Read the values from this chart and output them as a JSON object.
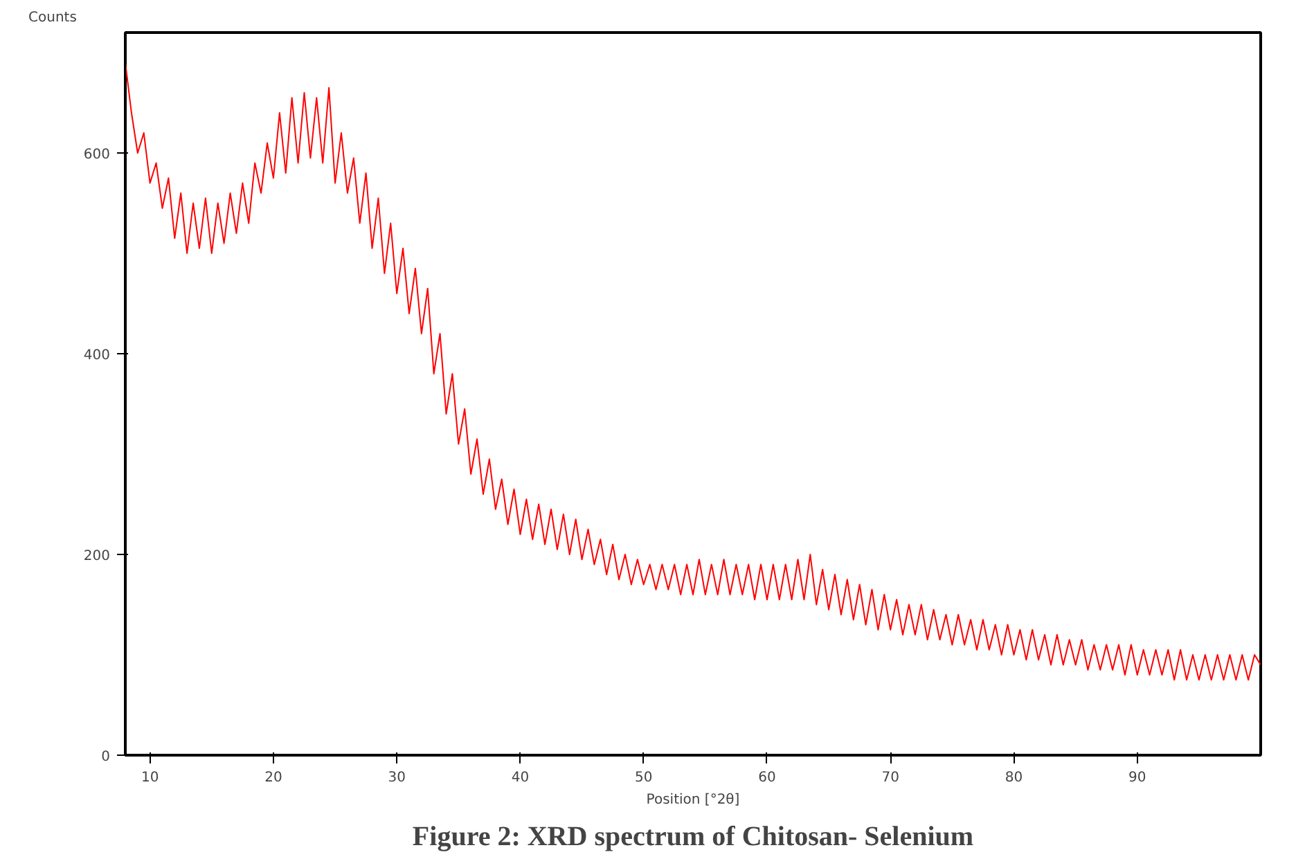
{
  "chart_data": {
    "type": "line",
    "title": "Figure 2: XRD spectrum of Chitosan- Selenium",
    "xlabel": "Position [°2θ]",
    "ylabel": "Counts",
    "x": [
      8,
      8.5,
      9,
      9.5,
      10,
      10.5,
      11,
      11.5,
      12,
      12.5,
      13,
      13.5,
      14,
      14.5,
      15,
      15.5,
      16,
      16.5,
      17,
      17.5,
      18,
      18.5,
      19,
      19.5,
      20,
      20.5,
      21,
      21.5,
      22,
      22.5,
      23,
      23.5,
      24,
      24.5,
      25,
      25.5,
      26,
      26.5,
      27,
      27.5,
      28,
      28.5,
      29,
      29.5,
      30,
      30.5,
      31,
      31.5,
      32,
      32.5,
      33,
      33.5,
      34,
      34.5,
      35,
      35.5,
      36,
      36.5,
      37,
      37.5,
      38,
      38.5,
      39,
      39.5,
      40,
      40.5,
      41,
      41.5,
      42,
      42.5,
      43,
      43.5,
      44,
      44.5,
      45,
      45.5,
      46,
      46.5,
      47,
      47.5,
      48,
      48.5,
      49,
      49.5,
      50,
      50.5,
      51,
      51.5,
      52,
      52.5,
      53,
      53.5,
      54,
      54.5,
      55,
      55.5,
      56,
      56.5,
      57,
      57.5,
      58,
      58.5,
      59,
      59.5,
      60,
      60.5,
      61,
      61.5,
      62,
      62.5,
      63,
      63.5,
      64,
      64.5,
      65,
      65.5,
      66,
      66.5,
      67,
      67.5,
      68,
      68.5,
      69,
      69.5,
      70,
      70.5,
      71,
      71.5,
      72,
      72.5,
      73,
      73.5,
      74,
      74.5,
      75,
      75.5,
      76,
      76.5,
      77,
      77.5,
      78,
      78.5,
      79,
      79.5,
      80,
      80.5,
      81,
      81.5,
      82,
      82.5,
      83,
      83.5,
      84,
      84.5,
      85,
      85.5,
      86,
      86.5,
      87,
      87.5,
      88,
      88.5,
      89,
      89.5,
      90,
      90.5,
      91,
      91.5,
      92,
      92.5,
      93,
      93.5,
      94,
      94.5,
      95,
      95.5,
      96,
      96.5,
      97,
      97.5,
      98,
      98.5,
      99,
      99.5,
      100
    ],
    "series": [
      {
        "color": "#ff0000",
        "values": [
          690,
          640,
          600,
          620,
          570,
          590,
          545,
          575,
          515,
          560,
          500,
          550,
          505,
          555,
          500,
          550,
          510,
          560,
          520,
          570,
          530,
          590,
          560,
          610,
          575,
          640,
          580,
          655,
          590,
          660,
          595,
          655,
          590,
          665,
          570,
          620,
          560,
          595,
          530,
          580,
          505,
          555,
          480,
          530,
          460,
          505,
          440,
          485,
          420,
          465,
          380,
          420,
          340,
          380,
          310,
          345,
          280,
          315,
          260,
          295,
          245,
          275,
          230,
          265,
          220,
          255,
          215,
          250,
          210,
          245,
          205,
          240,
          200,
          235,
          195,
          225,
          190,
          215,
          180,
          210,
          175,
          200,
          170,
          195,
          170,
          190,
          165,
          190,
          165,
          190,
          160,
          190,
          160,
          195,
          160,
          190,
          160,
          195,
          160,
          190,
          160,
          190,
          155,
          190,
          155,
          190,
          155,
          190,
          155,
          195,
          155,
          200,
          150,
          185,
          145,
          180,
          140,
          175,
          135,
          170,
          130,
          165,
          125,
          160,
          125,
          155,
          120,
          150,
          120,
          150,
          115,
          145,
          115,
          140,
          110,
          140,
          110,
          135,
          105,
          135,
          105,
          130,
          100,
          130,
          100,
          125,
          95,
          125,
          95,
          120,
          90,
          120,
          90,
          115,
          90,
          115,
          85,
          110,
          85,
          110,
          85,
          110,
          80,
          110,
          80,
          105,
          80,
          105,
          80,
          105,
          75,
          105,
          75,
          100,
          75,
          100,
          75,
          100,
          75,
          100,
          75,
          100,
          75,
          100,
          90
        ]
      }
    ],
    "xlim": [
      8,
      100
    ],
    "ylim": [
      0,
      720
    ],
    "xticks": [
      10,
      20,
      30,
      40,
      50,
      60,
      70,
      80,
      90
    ],
    "yticks": [
      0,
      200,
      400,
      600
    ],
    "grid": false
  }
}
